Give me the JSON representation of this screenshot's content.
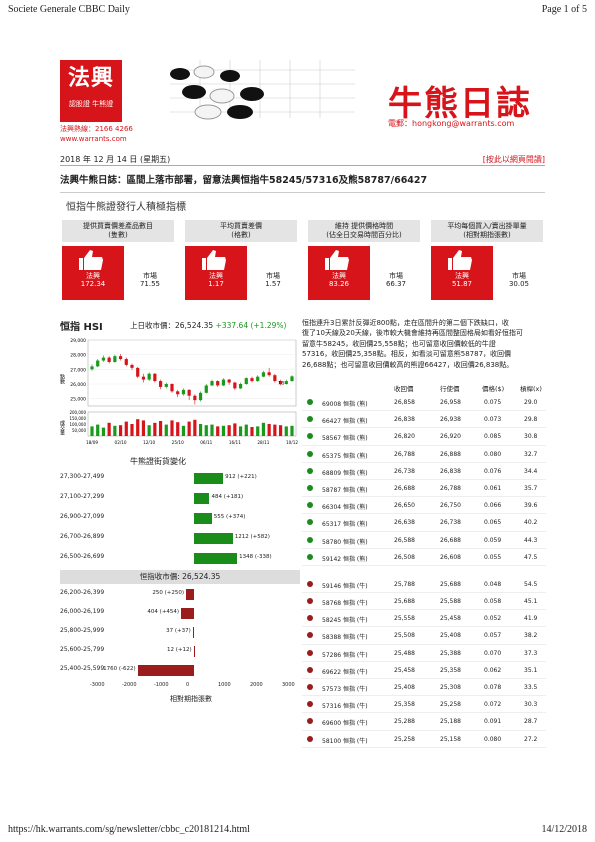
{
  "print_header": {
    "left": "Societe Generale CBBC Daily",
    "right": "Page 1 of 5"
  },
  "print_footer": {
    "left": "https://hk.warrants.com/sg/newsletter/cbbc_c20181214.html",
    "right": "14/12/2018"
  },
  "banner": {
    "logo_big": "法興",
    "logo_small": "認股證 牛熊證",
    "hotline": "法興熱線：2166 4266",
    "website": "www.warrants.com",
    "brand_title": "牛熊日誌",
    "email": "電郵：hongkong@warrants.com"
  },
  "date_line": "2018 年 12 月 14 日 (星期五)",
  "date_link": "[按此以網頁閱讀]",
  "headline": "法興牛熊日誌：區間上落市部署，留意法興恒指牛58245/57316及熊58787/66427",
  "ranking_title": "恒指牛熊證發行人積極指標",
  "cards": [
    {
      "title_l1": "提供買賣價差產品數目",
      "title_l2": "(隻數)",
      "tag": "法興",
      "tag_val": "172.34",
      "mkt": "市場",
      "mkt_val": "71.55"
    },
    {
      "title_l1": "平均買賣差價",
      "title_l2": "(格數)",
      "tag": "法興",
      "tag_val": "1.17",
      "mkt": "市場",
      "mkt_val": "1.57"
    },
    {
      "title_l1": "維持   提供價格時間",
      "title_l2": "(佔全日交易時間百分比)",
      "tag": "法興",
      "tag_val": "83.26",
      "mkt": "市場",
      "mkt_val": "66.37"
    },
    {
      "title_l1": "平均每個買入/賣出掛單量",
      "title_l2": "(相對期指張數)",
      "tag": "法興",
      "tag_val": "51.87",
      "mkt": "市場",
      "mkt_val": "30.05"
    }
  ],
  "hsi": {
    "title": "恒指 HSI",
    "prev_close_label": "上日收市價：26,524.35",
    "change": "+337.64 (+1.29%)",
    "kline_ylabel": "點數",
    "vol_ylabel": "成交量",
    "y_ticks": [
      "29,000",
      "28,000",
      "27,000",
      "26,000",
      "25,000"
    ],
    "vol_ticks": [
      "200,000",
      "150,000",
      "100,000",
      "50,000"
    ],
    "x_ticks": [
      "18/09",
      "02/10",
      "12/10",
      "25/10",
      "06/11",
      "16/11",
      "28/11",
      "10/12"
    ],
    "last_label": "7.5",
    "candles": [
      {
        "o": 27000,
        "c": 27200,
        "h": 27350,
        "l": 26900
      },
      {
        "o": 27200,
        "c": 27600,
        "h": 27700,
        "l": 27150
      },
      {
        "o": 27600,
        "c": 27800,
        "h": 27950,
        "l": 27500
      },
      {
        "o": 27800,
        "c": 27500,
        "h": 27900,
        "l": 27400
      },
      {
        "o": 27500,
        "c": 27900,
        "h": 28000,
        "l": 27450
      },
      {
        "o": 27900,
        "c": 27700,
        "h": 28050,
        "l": 27600
      },
      {
        "o": 27700,
        "c": 27300,
        "h": 27800,
        "l": 27200
      },
      {
        "o": 27300,
        "c": 27100,
        "h": 27400,
        "l": 26950
      },
      {
        "o": 27100,
        "c": 26500,
        "h": 27150,
        "l": 26400
      },
      {
        "o": 26500,
        "c": 26300,
        "h": 26700,
        "l": 26100
      },
      {
        "o": 26300,
        "c": 26700,
        "h": 26800,
        "l": 26200
      },
      {
        "o": 26700,
        "c": 26200,
        "h": 26750,
        "l": 26100
      },
      {
        "o": 26200,
        "c": 25800,
        "h": 26300,
        "l": 25650
      },
      {
        "o": 25800,
        "c": 26000,
        "h": 26100,
        "l": 25700
      },
      {
        "o": 26000,
        "c": 25500,
        "h": 26050,
        "l": 25400
      },
      {
        "o": 25500,
        "c": 25300,
        "h": 25600,
        "l": 25100
      },
      {
        "o": 25300,
        "c": 25600,
        "h": 25700,
        "l": 25200
      },
      {
        "o": 25600,
        "c": 25200,
        "h": 25650,
        "l": 24900
      },
      {
        "o": 25200,
        "c": 24900,
        "h": 25300,
        "l": 24600
      },
      {
        "o": 24900,
        "c": 25400,
        "h": 25500,
        "l": 24800
      },
      {
        "o": 25400,
        "c": 25900,
        "h": 26000,
        "l": 25350
      },
      {
        "o": 25900,
        "c": 26200,
        "h": 26300,
        "l": 25850
      },
      {
        "o": 26200,
        "c": 25900,
        "h": 26250,
        "l": 25800
      },
      {
        "o": 25900,
        "c": 26300,
        "h": 26400,
        "l": 25850
      },
      {
        "o": 26300,
        "c": 26100,
        "h": 26350,
        "l": 25950
      },
      {
        "o": 26100,
        "c": 25700,
        "h": 26150,
        "l": 25600
      },
      {
        "o": 25700,
        "c": 26000,
        "h": 26100,
        "l": 25650
      },
      {
        "o": 26000,
        "c": 26400,
        "h": 26450,
        "l": 25950
      },
      {
        "o": 26400,
        "c": 26200,
        "h": 26500,
        "l": 26100
      },
      {
        "o": 26200,
        "c": 26500,
        "h": 26600,
        "l": 26150
      },
      {
        "o": 26500,
        "c": 26800,
        "h": 26900,
        "l": 26450
      },
      {
        "o": 26800,
        "c": 26600,
        "h": 27100,
        "l": 26500
      },
      {
        "o": 26600,
        "c": 26200,
        "h": 26700,
        "l": 26100
      },
      {
        "o": 26200,
        "c": 26000,
        "h": 26300,
        "l": 25900
      },
      {
        "o": 26000,
        "c": 26200,
        "h": 26300,
        "l": 25950
      },
      {
        "o": 26200,
        "c": 26524,
        "h": 26600,
        "l": 26150
      }
    ],
    "volumes": [
      80000,
      95000,
      70000,
      110000,
      85000,
      90000,
      120000,
      100000,
      140000,
      130000,
      90000,
      110000,
      125000,
      95000,
      130000,
      115000,
      85000,
      120000,
      135000,
      100000,
      90000,
      95000,
      80000,
      85000,
      90000,
      105000,
      80000,
      95000,
      75000,
      80000,
      110000,
      100000,
      95000,
      90000,
      80000,
      85000
    ]
  },
  "distribution": {
    "title": "牛熊證街貨變化",
    "divider": "恒指收市價: 26,524.35",
    "x_ticks": [
      "-3000",
      "-2000",
      "-1000",
      "0",
      "1000",
      "2000",
      "3000"
    ],
    "x_title": "相對期指張數",
    "bear_rows": [
      {
        "range": "27,300-27,499",
        "value": 912,
        "label": "912 (+221)"
      },
      {
        "range": "27,100-27,299",
        "value": 484,
        "label": "484 (+181)"
      },
      {
        "range": "26,900-27,099",
        "value": 555,
        "label": "555 (+374)"
      },
      {
        "range": "26,700-26,899",
        "value": 1212,
        "label": "1212 (+582)"
      },
      {
        "range": "26,500-26,699",
        "value": 1348,
        "label": "1348 (-338)"
      }
    ],
    "bull_rows": [
      {
        "range": "26,200-26,399",
        "value": 250,
        "label": "250 (+250)"
      },
      {
        "range": "26,000-26,199",
        "value": 404,
        "label": "404 (+454)"
      },
      {
        "range": "25,800-25,999",
        "value": 37,
        "label": "37 (+37)"
      },
      {
        "range": "25,600-25,799",
        "value": 12,
        "label": "12 (+12)"
      },
      {
        "range": "25,400-25,599",
        "value": 1760,
        "label": "1760 (-622)"
      }
    ]
  },
  "commentary": [
    "恒指連升3日累計反彈近800點，走在區間升的第二個下跌缺口，收",
    "復了10天線及20天線，後市較大機會維持再區間整固格局如看好恒指可",
    "留意牛58245，收回價25,558點；也可留意收回價較低的牛證",
    "57316，收回價25,358點。相反，如看淡可留意熊58787，收回價",
    "26,688點；也可留意收回價較高的熊證66427，收回價26,838點。"
  ],
  "watchlist": {
    "headers": [
      "收回價",
      "行使價",
      "價格($)",
      "槓桿(x)"
    ],
    "bears": [
      {
        "code": "69008 恒指 (熊)",
        "call": "26,858",
        "strike": "26,958",
        "price": "0.075",
        "lev": "29.0"
      },
      {
        "code": "66427 恒指 (熊)",
        "call": "26,838",
        "strike": "26,938",
        "price": "0.073",
        "lev": "29.8"
      },
      {
        "code": "58567 恒指 (熊)",
        "call": "26,820",
        "strike": "26,920",
        "price": "0.085",
        "lev": "30.8"
      },
      {
        "code": "65375 恒指 (熊)",
        "call": "26,788",
        "strike": "26,888",
        "price": "0.080",
        "lev": "32.7"
      },
      {
        "code": "68809 恒指 (熊)",
        "call": "26,738",
        "strike": "26,838",
        "price": "0.076",
        "lev": "34.4"
      },
      {
        "code": "58787 恒指 (熊)",
        "call": "26,688",
        "strike": "26,788",
        "price": "0.061",
        "lev": "35.7"
      },
      {
        "code": "66304 恒指 (熊)",
        "call": "26,650",
        "strike": "26,750",
        "price": "0.066",
        "lev": "39.6"
      },
      {
        "code": "65317 恒指 (熊)",
        "call": "26,638",
        "strike": "26,738",
        "price": "0.065",
        "lev": "40.2"
      },
      {
        "code": "58780 恒指 (熊)",
        "call": "26,588",
        "strike": "26,688",
        "price": "0.059",
        "lev": "44.3"
      },
      {
        "code": "59142 恒指 (熊)",
        "call": "26,508",
        "strike": "26,608",
        "price": "0.055",
        "lev": "47.5"
      }
    ],
    "bulls": [
      {
        "code": "59146 恒指 (牛)",
        "call": "25,788",
        "strike": "25,688",
        "price": "0.048",
        "lev": "54.5"
      },
      {
        "code": "58768 恒指 (牛)",
        "call": "25,688",
        "strike": "25,588",
        "price": "0.058",
        "lev": "45.1"
      },
      {
        "code": "58245 恒指 (牛)",
        "call": "25,558",
        "strike": "25,458",
        "price": "0.052",
        "lev": "41.9"
      },
      {
        "code": "58388 恒指 (牛)",
        "call": "25,508",
        "strike": "25,408",
        "price": "0.057",
        "lev": "38.2"
      },
      {
        "code": "57286 恒指 (牛)",
        "call": "25,488",
        "strike": "25,388",
        "price": "0.070",
        "lev": "37.3"
      },
      {
        "code": "69622 恒指 (牛)",
        "call": "25,458",
        "strike": "25,358",
        "price": "0.062",
        "lev": "35.1"
      },
      {
        "code": "57573 恒指 (牛)",
        "call": "25,408",
        "strike": "25,308",
        "price": "0.078",
        "lev": "33.5"
      },
      {
        "code": "57316 恒指 (牛)",
        "call": "25,358",
        "strike": "25,258",
        "price": "0.072",
        "lev": "30.3"
      },
      {
        "code": "69600 恒指 (牛)",
        "call": "25,288",
        "strike": "25,188",
        "price": "0.091",
        "lev": "28.7"
      },
      {
        "code": "58100 恒指 (牛)",
        "call": "25,258",
        "strike": "25,158",
        "price": "0.080",
        "lev": "27.2"
      }
    ]
  },
  "colors": {
    "brand_red": "#d7141a",
    "bear_green": "#1a8c1a",
    "bull_red": "#9b1c1c",
    "up_green": "#1a9a1a"
  }
}
